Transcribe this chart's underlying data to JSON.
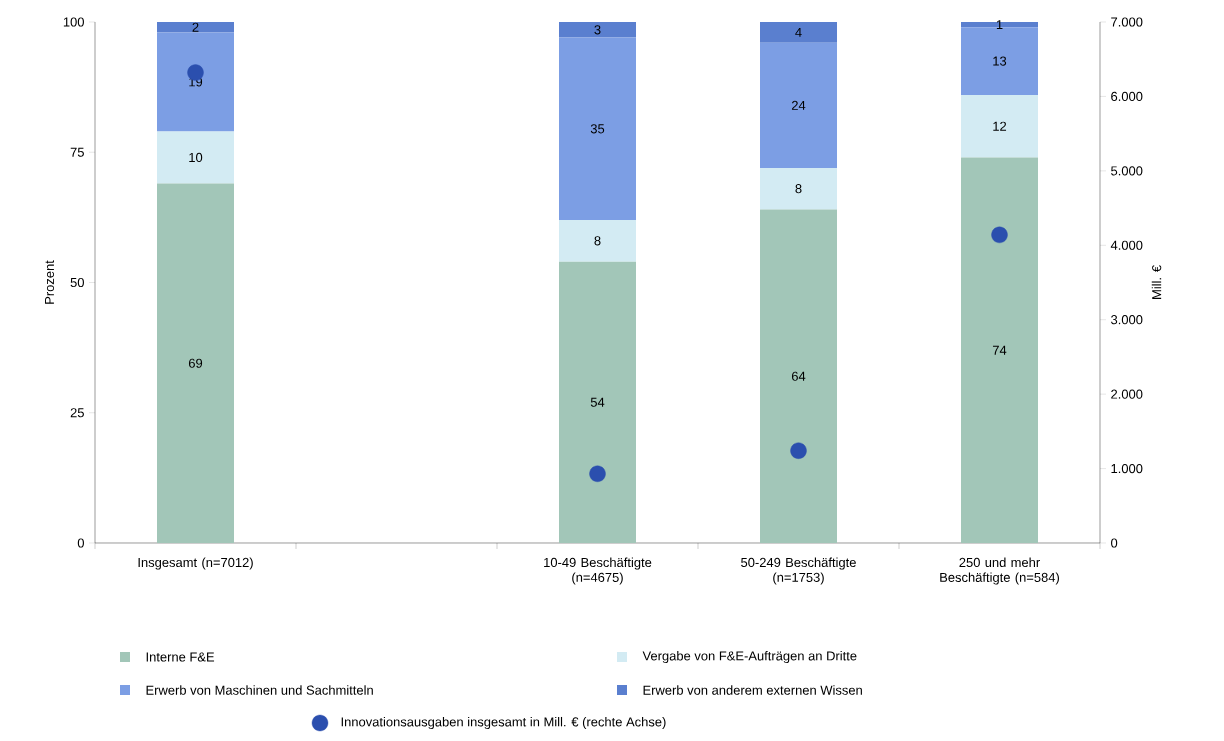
{
  "chart_data": {
    "type": "bar",
    "stacked": true,
    "ylabel": "Prozent",
    "y2label": "Mill. €",
    "categories": [
      "Insgesamt (n=7012)",
      null,
      "10-49 Beschäftigte (n=4675)",
      "50-249 Beschäftigte (n=1753)",
      "250 und mehr Beschäftigte (n=584)"
    ],
    "series": [
      {
        "name": "Interne F&E",
        "color": "#a2c6b8",
        "values": [
          69,
          null,
          54,
          64,
          74
        ],
        "value_labels": [
          "69",
          null,
          "54",
          "64",
          "74"
        ]
      },
      {
        "name": "Vergabe von F&E-Aufträgen an Dritte",
        "color": "#d3ebf3",
        "values": [
          10,
          null,
          8,
          8,
          12
        ],
        "value_labels": [
          "10",
          null,
          "8",
          "8",
          "12"
        ]
      },
      {
        "name": "Erwerb von Maschinen und Sachmitteln",
        "color": "#7c9ee4",
        "values": [
          19,
          null,
          35,
          24,
          13
        ],
        "value_labels": [
          "19",
          null,
          "35",
          "24",
          "13"
        ]
      },
      {
        "name": "Erwerb von anderem externen Wissen",
        "color": "#5a7fcf",
        "values": [
          2,
          null,
          3,
          4,
          1
        ],
        "value_labels": [
          "2",
          null,
          "3",
          "4",
          "1"
        ]
      },
      {
        "name": "Innovationsausgaben insgesamt in Mill. € (rechte Achse)",
        "type": "scatter",
        "axis": "y2",
        "color": "#2b4fae",
        "marker": "circle",
        "values": [
          6320,
          null,
          930,
          1240,
          4140
        ]
      }
    ],
    "ylim": [
      0,
      100
    ],
    "yticks": [
      0,
      25,
      50,
      75,
      100
    ],
    "y2lim": [
      0,
      7000
    ],
    "y2ticks": [
      {
        "value": 0,
        "label": "0"
      },
      {
        "value": 1000,
        "label": "1.000"
      },
      {
        "value": 2000,
        "label": "2.000"
      },
      {
        "value": 3000,
        "label": "3.000"
      },
      {
        "value": 4000,
        "label": "4.000"
      },
      {
        "value": 5000,
        "label": "5.000"
      },
      {
        "value": 6000,
        "label": "6.000"
      },
      {
        "value": 7000,
        "label": "7.000"
      }
    ],
    "legend": "bottom"
  }
}
